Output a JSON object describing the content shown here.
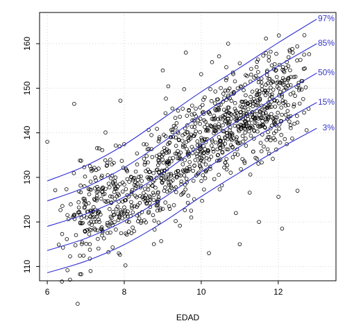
{
  "chart_data": {
    "type": "scatter",
    "title": "",
    "xlabel": "EDAD",
    "ylabel": "",
    "xlim": [
      5.8,
      13.5
    ],
    "ylim": [
      106.8,
      167.0
    ],
    "x_ticks": [
      6,
      8,
      10,
      12
    ],
    "y_ticks": [
      110,
      120,
      130,
      140,
      150,
      160
    ],
    "grid": true,
    "curve_color": "#2f2fd0",
    "label_color": "#3535c8",
    "point_color": "#000000",
    "centiles": [
      {
        "label": "97%",
        "x": [
          6,
          7,
          8,
          9,
          10,
          11,
          12,
          13
        ],
        "y": [
          129.2,
          132.6,
          137.3,
          143.2,
          149.2,
          154.6,
          160.2,
          165.5
        ]
      },
      {
        "label": "85%",
        "x": [
          6,
          7,
          8,
          9,
          10,
          11,
          12,
          13
        ],
        "y": [
          124.7,
          127.8,
          132.2,
          137.9,
          144.0,
          149.6,
          155.0,
          160.0
        ]
      },
      {
        "label": "50%",
        "x": [
          6,
          7,
          8,
          9,
          10,
          11,
          12,
          13
        ],
        "y": [
          119.0,
          121.8,
          125.6,
          131.0,
          137.3,
          143.0,
          148.3,
          153.4
        ]
      },
      {
        "label": "15%",
        "x": [
          6,
          7,
          8,
          9,
          10,
          11,
          12,
          13
        ],
        "y": [
          113.6,
          116.3,
          120.2,
          125.3,
          131.2,
          136.9,
          142.0,
          146.8
        ]
      },
      {
        "label": "3%",
        "x": [
          6,
          7,
          8,
          9,
          10,
          11,
          12,
          13
        ],
        "y": [
          108.6,
          111.2,
          114.9,
          119.9,
          125.7,
          131.1,
          136.3,
          141.0
        ]
      }
    ],
    "outliers": [
      {
        "x": 6.0,
        "y": 138.0
      },
      {
        "x": 6.7,
        "y": 146.5
      },
      {
        "x": 7.9,
        "y": 147.2
      },
      {
        "x": 9.6,
        "y": 158.0
      },
      {
        "x": 10.7,
        "y": 160.0
      },
      {
        "x": 10.2,
        "y": 113.0
      },
      {
        "x": 11.0,
        "y": 115.0
      },
      {
        "x": 12.1,
        "y": 118.5
      },
      {
        "x": 12.5,
        "y": 127.0
      },
      {
        "x": 11.5,
        "y": 120.0
      },
      {
        "x": 9.0,
        "y": 154.0
      },
      {
        "x": 10.9,
        "y": 122.0
      }
    ],
    "points_generated": {
      "n": 1150,
      "x_range": [
        6.05,
        12.95
      ],
      "spread_around_median_sd": 5.6,
      "seed": 7
    }
  }
}
